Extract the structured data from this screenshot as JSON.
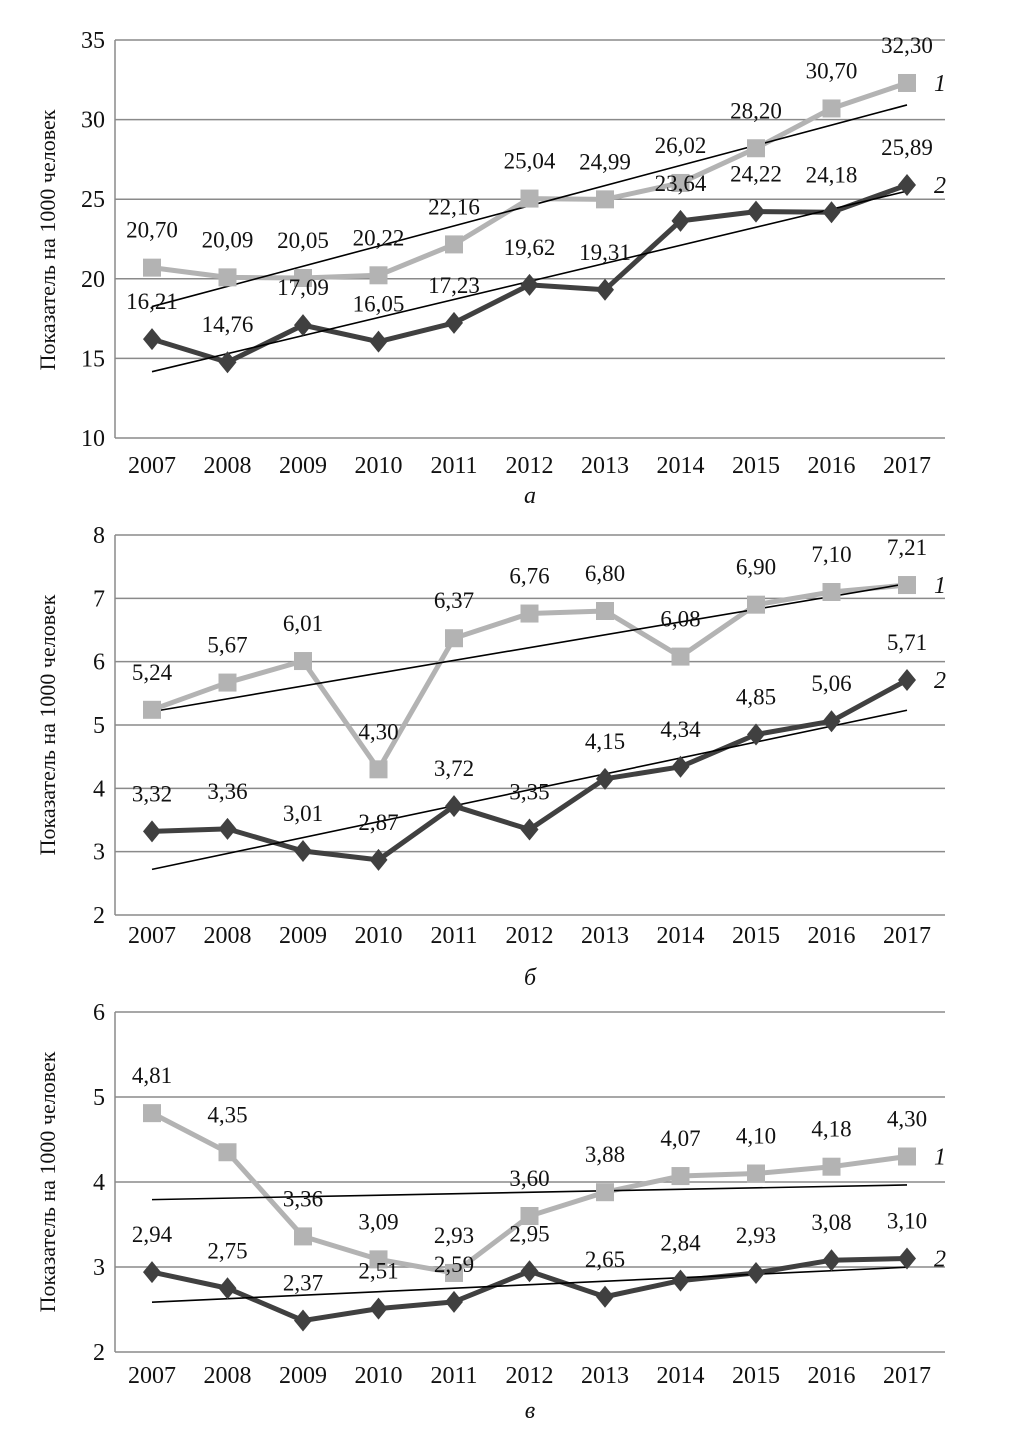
{
  "chart_data": [
    {
      "type": "line",
      "caption": "а",
      "ylabel": "Показатель на 1000 человек",
      "categories": [
        "2007",
        "2008",
        "2009",
        "2010",
        "2011",
        "2012",
        "2013",
        "2014",
        "2015",
        "2016",
        "2017"
      ],
      "ylim": [
        10,
        35
      ],
      "yticks": [
        10,
        15,
        20,
        25,
        30,
        35
      ],
      "grid": true,
      "trendlines": true,
      "series": [
        {
          "name": "1",
          "color": "#b3b3b3",
          "marker": "square",
          "values": [
            20.7,
            20.09,
            20.05,
            20.22,
            22.16,
            25.04,
            24.99,
            26.02,
            28.2,
            30.7,
            32.3
          ],
          "labels": [
            "20,70",
            "20,09",
            "20,05",
            "20,22",
            "22,16",
            "25,04",
            "24,99",
            "26,02",
            "28,20",
            "30,70",
            "32,30"
          ]
        },
        {
          "name": "2",
          "color": "#404040",
          "marker": "diamond",
          "values": [
            16.21,
            14.76,
            17.09,
            16.05,
            17.23,
            19.62,
            19.31,
            23.64,
            24.22,
            24.18,
            25.89
          ],
          "labels": [
            "16,21",
            "14,76",
            "17,09",
            "16,05",
            "17,23",
            "19,62",
            "19,31",
            "23,64",
            "24,22",
            "24,18",
            "25,89"
          ]
        }
      ]
    },
    {
      "type": "line",
      "caption": "б",
      "ylabel": "Показатель на 1000 человек",
      "categories": [
        "2007",
        "2008",
        "2009",
        "2010",
        "2011",
        "2012",
        "2013",
        "2014",
        "2015",
        "2016",
        "2017"
      ],
      "ylim": [
        2,
        8
      ],
      "yticks": [
        2,
        3,
        4,
        5,
        6,
        7,
        8
      ],
      "grid": true,
      "trendlines": true,
      "series": [
        {
          "name": "1",
          "color": "#b3b3b3",
          "marker": "square",
          "values": [
            5.24,
            5.67,
            6.01,
            4.3,
            6.37,
            6.76,
            6.8,
            6.08,
            6.9,
            7.1,
            7.21
          ],
          "labels": [
            "5,24",
            "5,67",
            "6,01",
            "4,30",
            "6,37",
            "6,76",
            "6,80",
            "6,08",
            "6,90",
            "7,10",
            "7,21"
          ]
        },
        {
          "name": "2",
          "color": "#404040",
          "marker": "diamond",
          "values": [
            3.32,
            3.36,
            3.01,
            2.87,
            3.72,
            3.35,
            4.15,
            4.34,
            4.85,
            5.06,
            5.71
          ],
          "labels": [
            "3,32",
            "3,36",
            "3,01",
            "2,87",
            "3,72",
            "3,35",
            "4,15",
            "4,34",
            "4,85",
            "5,06",
            "5,71"
          ]
        }
      ]
    },
    {
      "type": "line",
      "caption": "в",
      "ylabel": "Показатель на 1000 человек",
      "categories": [
        "2007",
        "2008",
        "2009",
        "2010",
        "2011",
        "2012",
        "2013",
        "2014",
        "2015",
        "2016",
        "2017"
      ],
      "ylim": [
        2,
        6
      ],
      "yticks": [
        2,
        3,
        4,
        5,
        6
      ],
      "grid": true,
      "trendlines": true,
      "series": [
        {
          "name": "1",
          "color": "#b3b3b3",
          "marker": "square",
          "values": [
            4.81,
            4.35,
            3.36,
            3.09,
            2.93,
            3.6,
            3.88,
            4.07,
            4.1,
            4.18,
            4.3
          ],
          "labels": [
            "4,81",
            "4,35",
            "3,36",
            "3,09",
            "2,93",
            "3,60",
            "3,88",
            "4,07",
            "4,10",
            "4,18",
            "4,30"
          ]
        },
        {
          "name": "2",
          "color": "#404040",
          "marker": "diamond",
          "values": [
            2.94,
            2.75,
            2.37,
            2.51,
            2.59,
            2.95,
            2.65,
            2.84,
            2.93,
            3.08,
            3.1
          ],
          "labels": [
            "2,94",
            "2,75",
            "2,37",
            "2,51",
            "2,59",
            "2,95",
            "2,65",
            "2,84",
            "2,93",
            "3,08",
            "3,10"
          ]
        }
      ]
    }
  ]
}
